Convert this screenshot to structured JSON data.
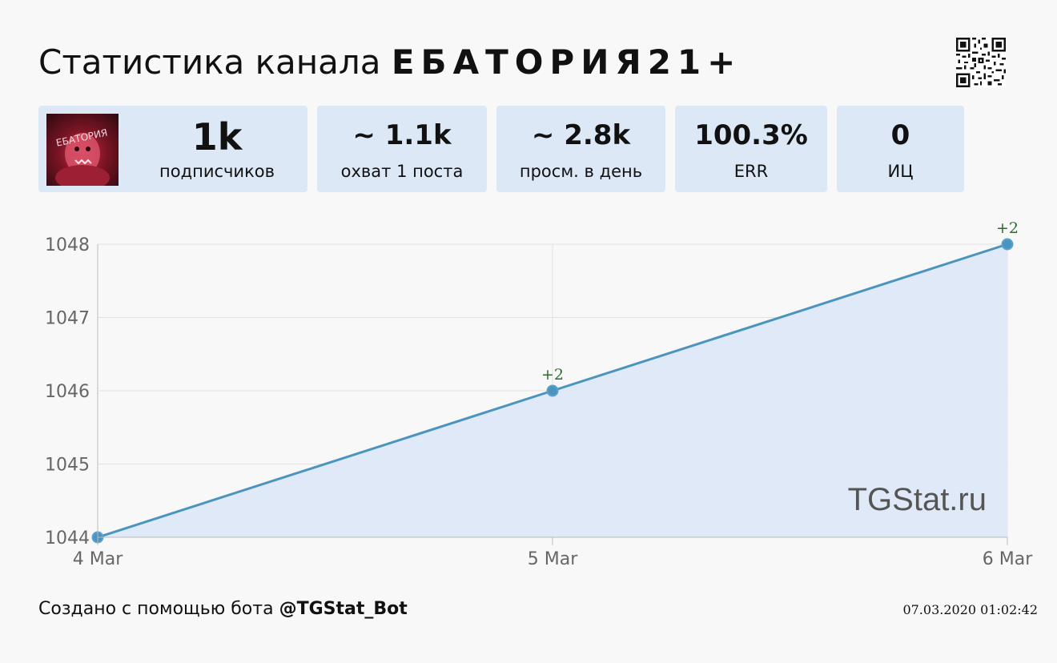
{
  "header": {
    "title_prefix": "Статистика канала",
    "channel_name": "ЕБАТОРИЯ21+"
  },
  "stats": [
    {
      "value": "1k",
      "label": "подписчиков"
    },
    {
      "value": "~ 1.1k",
      "label": "охват 1 поста"
    },
    {
      "value": "~ 2.8k",
      "label": "просм. в день"
    },
    {
      "value": "100.3%",
      "label": "ERR"
    },
    {
      "value": "0",
      "label": "ИЦ"
    }
  ],
  "avatar_text": "ЕБАТОРИЯ",
  "chart_data": {
    "type": "area",
    "x": [
      "4 Mar",
      "5 Mar",
      "6 Mar"
    ],
    "series": [
      {
        "values": [
          1044,
          1046,
          1048
        ],
        "deltas": [
          "",
          "+2",
          "+2"
        ]
      }
    ],
    "yticks": [
      1044,
      1045,
      1046,
      1047,
      1048
    ],
    "ylim": [
      1044,
      1048
    ],
    "grid": true,
    "watermark": "TGStat.ru",
    "colors": {
      "line": "#4a94bf",
      "fill": "#dde8f7",
      "delta": "#2e6b2e",
      "grid": "#e2e2e2"
    }
  },
  "footer": {
    "prefix": "Создано с помощью бота",
    "bot": "@TGStat_Bot",
    "timestamp": "07.03.2020 01:02:42"
  }
}
